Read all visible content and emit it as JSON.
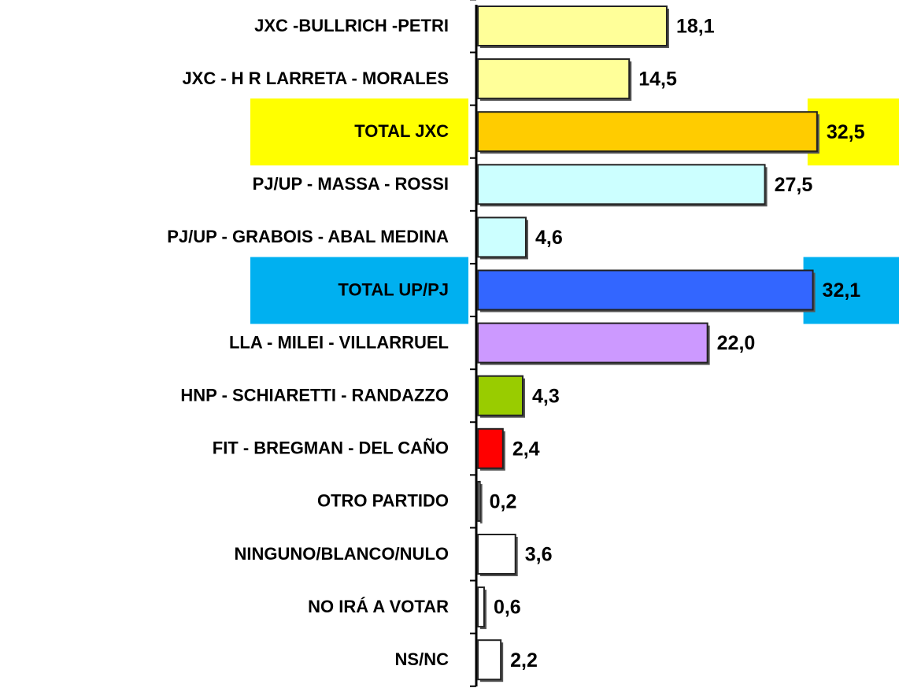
{
  "chart_data": {
    "type": "hbar",
    "categories": [
      "JXC -BULLRICH -PETRI",
      "JXC - H R LARRETA - MORALES",
      "TOTAL JXC",
      "PJ/UP - MASSA - ROSSI",
      "PJ/UP - GRABOIS - ABAL MEDINA",
      "TOTAL UP/PJ",
      "LLA - MILEI - VILLARRUEL",
      "HNP - SCHIARETTI - RANDAZZO",
      "FIT - BREGMAN - DEL CAÑO",
      "OTRO PARTIDO",
      "NINGUNO/BLANCO/NULO",
      "NO IRÁ A VOTAR",
      "NS/NC"
    ],
    "values": [
      18.1,
      14.5,
      32.5,
      27.5,
      4.6,
      32.1,
      22.0,
      4.3,
      2.4,
      0.2,
      3.6,
      0.6,
      2.2
    ],
    "value_labels": [
      "18,1",
      "14,5",
      "32,5",
      "27,5",
      "4,6",
      "32,1",
      "22,0",
      "4,3",
      "2,4",
      "0,2",
      "3,6",
      "0,6",
      "2,2"
    ],
    "colors": [
      "#ffff99",
      "#ffff99",
      "#ffcc00",
      "#ccffff",
      "#ccffff",
      "#3366ff",
      "#cc99ff",
      "#99cc00",
      "#ff0000",
      "#ffffff",
      "#ffffff",
      "#ffffff",
      "#ffffff"
    ],
    "highlight_colors": [
      null,
      null,
      "#ffff00",
      null,
      null,
      "#00b0f0",
      null,
      null,
      null,
      null,
      null,
      null,
      null
    ],
    "xlim": [
      0,
      35
    ]
  }
}
